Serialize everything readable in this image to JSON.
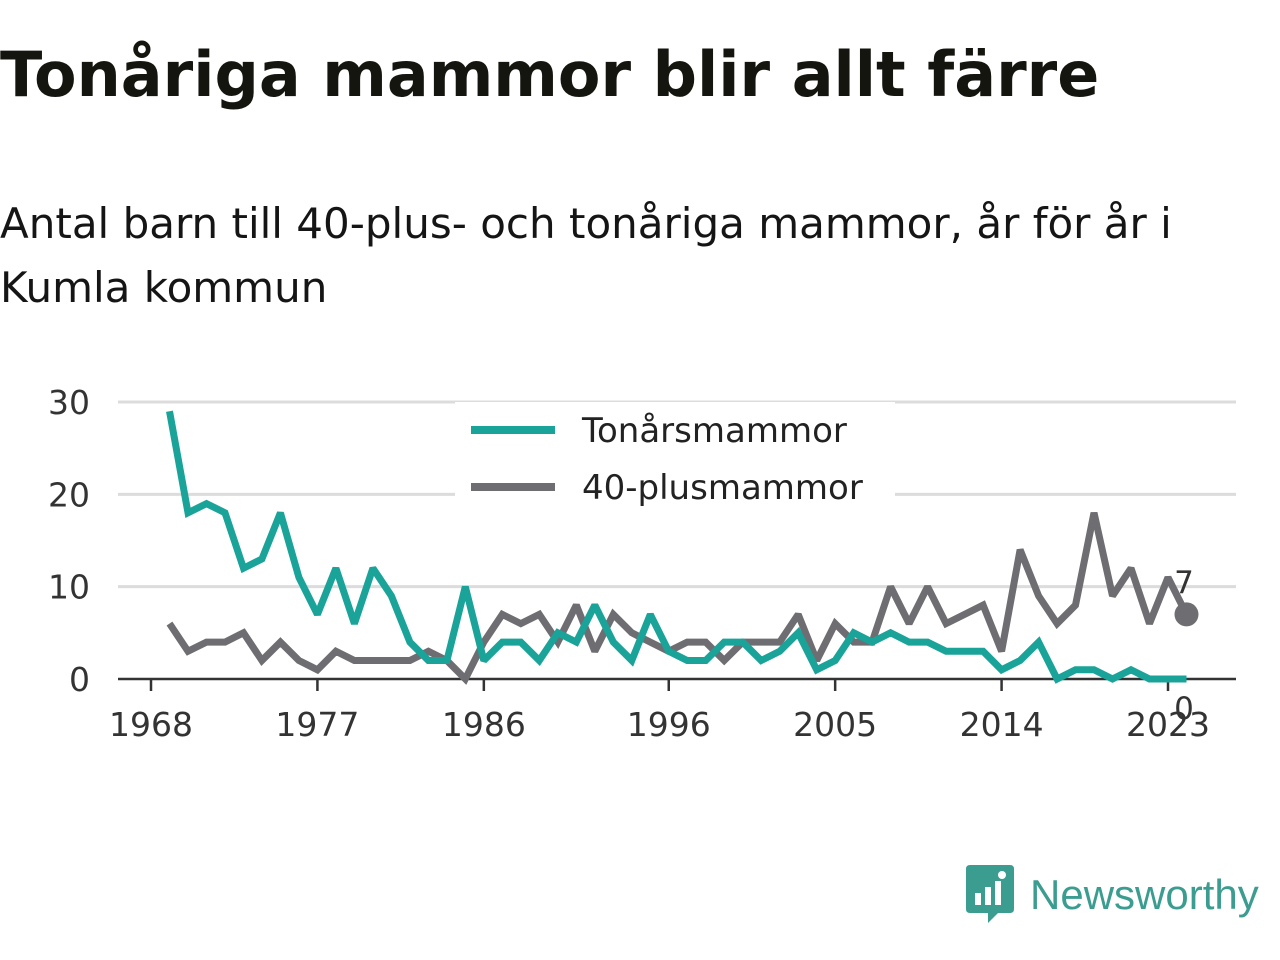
{
  "header": {
    "title": "Tonåriga mammor blir allt färre",
    "subtitle": "Antal barn till 40-plus- och tonåriga mammor, år för år i Kumla kommun"
  },
  "brand": {
    "name": "Newsworthy",
    "icon": "bar-chart-speech-bubble-icon",
    "color": "#3b9d8f"
  },
  "chart_data": {
    "type": "line",
    "title": "Tonåriga mammor blir allt färre",
    "subtitle": "Antal barn till 40-plus- och tonåriga mammor, år för år i Kumla kommun",
    "xlabel": "",
    "ylabel": "",
    "x": [
      1969,
      1970,
      1971,
      1972,
      1973,
      1974,
      1975,
      1976,
      1977,
      1978,
      1979,
      1980,
      1981,
      1982,
      1983,
      1984,
      1985,
      1986,
      1987,
      1988,
      1989,
      1990,
      1991,
      1992,
      1993,
      1994,
      1995,
      1996,
      1997,
      1998,
      1999,
      2000,
      2001,
      2002,
      2003,
      2004,
      2005,
      2006,
      2007,
      2008,
      2009,
      2010,
      2011,
      2012,
      2013,
      2014,
      2015,
      2016,
      2017,
      2018,
      2019,
      2020,
      2021,
      2022,
      2023,
      2024
    ],
    "x_ticks": [
      "1968",
      "1977",
      "1986",
      "1996",
      "2005",
      "2014",
      "2023"
    ],
    "y_ticks": [
      "0",
      "10",
      "20",
      "30"
    ],
    "ylim": [
      0,
      30
    ],
    "grid": true,
    "legend_position": "top-center",
    "series": [
      {
        "name": "Tonårsmammor",
        "color": "#1aa399",
        "values": [
          29,
          18,
          19,
          18,
          12,
          13,
          18,
          11,
          7,
          12,
          6,
          12,
          9,
          4,
          2,
          2,
          10,
          2,
          4,
          4,
          2,
          5,
          4,
          8,
          4,
          2,
          7,
          3,
          2,
          2,
          4,
          4,
          2,
          3,
          5,
          1,
          2,
          5,
          4,
          5,
          4,
          4,
          3,
          3,
          3,
          1,
          2,
          4,
          0,
          1,
          1,
          0,
          1,
          0,
          0,
          0
        ],
        "end_label": "0"
      },
      {
        "name": "40-plusmammor",
        "color": "#6d6d72",
        "values": [
          6,
          3,
          4,
          4,
          5,
          2,
          4,
          2,
          1,
          3,
          2,
          2,
          2,
          2,
          3,
          2,
          0,
          4,
          7,
          6,
          7,
          4,
          8,
          3,
          7,
          5,
          4,
          3,
          4,
          4,
          2,
          4,
          4,
          4,
          7,
          2,
          6,
          4,
          4,
          10,
          6,
          10,
          6,
          7,
          8,
          3,
          14,
          9,
          6,
          8,
          18,
          9,
          12,
          6,
          11,
          7
        ],
        "end_label": "7"
      }
    ]
  }
}
